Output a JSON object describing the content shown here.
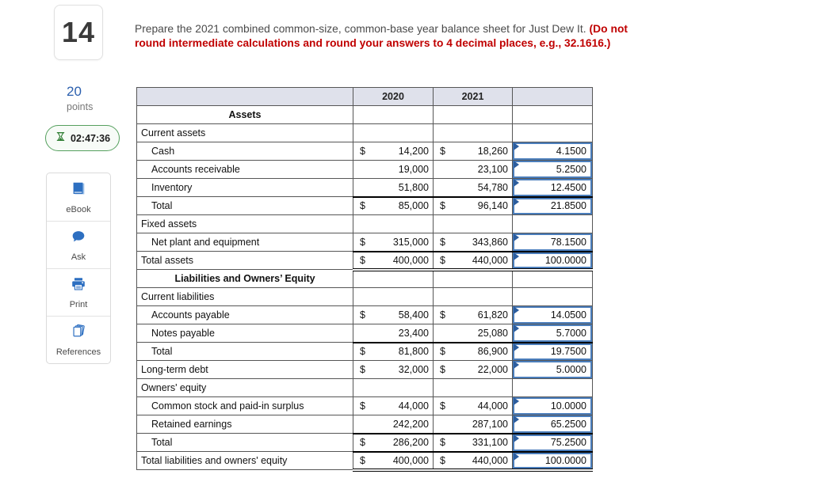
{
  "question": {
    "number": "14",
    "points_value": "20",
    "points_label": "points",
    "timer": "02:47:36",
    "prompt_normal": "Prepare the 2021 combined common-size, common-base year balance sheet for Just Dew It. ",
    "prompt_bold_red": "(Do not round intermediate calculations and round your answers to 4 decimal places, e.g., 32.1616.)"
  },
  "sidebar": {
    "items": [
      {
        "label": "eBook",
        "icon": "book-icon"
      },
      {
        "label": "Ask",
        "icon": "chat-bubble-icon"
      },
      {
        "label": "Print",
        "icon": "printer-icon"
      },
      {
        "label": "References",
        "icon": "stacked-pages-icon"
      }
    ]
  },
  "colors": {
    "accent_blue_icon": "#2d6fc1",
    "answer_border_blue": "#4a7dbb",
    "timer_green": "#55a05e",
    "header_row_bg": "#dfe1eb",
    "alert_red": "#c00000",
    "points_blue": "#2b5fae"
  },
  "table": {
    "col_headers": [
      "",
      "2020",
      "2021",
      ""
    ],
    "rows": [
      {
        "label": "Assets",
        "center": true
      },
      {
        "label": "Current assets"
      },
      {
        "label": "Cash",
        "indent": true,
        "y2020": {
          "d": "$",
          "v": "14,200"
        },
        "y2021": {
          "d": "$",
          "v": "18,260"
        },
        "ans": "4.1500"
      },
      {
        "label": "Accounts receivable",
        "indent": true,
        "y2020": {
          "d": "",
          "v": "19,000"
        },
        "y2021": {
          "d": "",
          "v": "23,100"
        },
        "ans": "5.2500"
      },
      {
        "label": "Inventory",
        "indent": true,
        "y2020": {
          "d": "",
          "v": "51,800"
        },
        "y2021": {
          "d": "",
          "v": "54,780"
        },
        "ans": "12.4500"
      },
      {
        "label": "Total",
        "indent": true,
        "total": true,
        "y2020": {
          "d": "$",
          "v": "85,000"
        },
        "y2021": {
          "d": "$",
          "v": "96,140"
        },
        "ans": "21.8500"
      },
      {
        "label": "Fixed assets"
      },
      {
        "label": "Net plant and equipment",
        "indent": true,
        "y2020": {
          "d": "$",
          "v": "315,000"
        },
        "y2021": {
          "d": "$",
          "v": "343,860"
        },
        "ans": "78.1500"
      },
      {
        "label": "Total assets",
        "total": true,
        "grand": true,
        "y2020": {
          "d": "$",
          "v": "400,000"
        },
        "y2021": {
          "d": "$",
          "v": "440,000"
        },
        "ans": "100.0000"
      },
      {
        "label": "Liabilities and Owners’ Equity",
        "center": true
      },
      {
        "label": "Current liabilities"
      },
      {
        "label": "Accounts payable",
        "indent": true,
        "y2020": {
          "d": "$",
          "v": "58,400"
        },
        "y2021": {
          "d": "$",
          "v": "61,820"
        },
        "ans": "14.0500"
      },
      {
        "label": "Notes payable",
        "indent": true,
        "y2020": {
          "d": "",
          "v": "23,400"
        },
        "y2021": {
          "d": "",
          "v": "25,080"
        },
        "ans": "5.7000"
      },
      {
        "label": "Total",
        "indent": true,
        "total": true,
        "y2020": {
          "d": "$",
          "v": "81,800"
        },
        "y2021": {
          "d": "$",
          "v": "86,900"
        },
        "ans": "19.7500"
      },
      {
        "label": "Long-term debt",
        "y2020": {
          "d": "$",
          "v": "32,000"
        },
        "y2021": {
          "d": "$",
          "v": "22,000"
        },
        "ans": "5.0000"
      },
      {
        "label": "Owners' equity"
      },
      {
        "label": "Common stock and paid-in surplus",
        "indent": true,
        "y2020": {
          "d": "$",
          "v": "44,000"
        },
        "y2021": {
          "d": "$",
          "v": "44,000"
        },
        "ans": "10.0000"
      },
      {
        "label": "Retained earnings",
        "indent": true,
        "y2020": {
          "d": "",
          "v": "242,200"
        },
        "y2021": {
          "d": "",
          "v": "287,100"
        },
        "ans": "65.2500"
      },
      {
        "label": "Total",
        "indent": true,
        "total": true,
        "y2020": {
          "d": "$",
          "v": "286,200"
        },
        "y2021": {
          "d": "$",
          "v": "331,100"
        },
        "ans": "75.2500"
      },
      {
        "label": "Total liabilities and owners' equity",
        "total": true,
        "grand": true,
        "y2020": {
          "d": "$",
          "v": "400,000"
        },
        "y2021": {
          "d": "$",
          "v": "440,000"
        },
        "ans": "100.0000"
      }
    ]
  }
}
